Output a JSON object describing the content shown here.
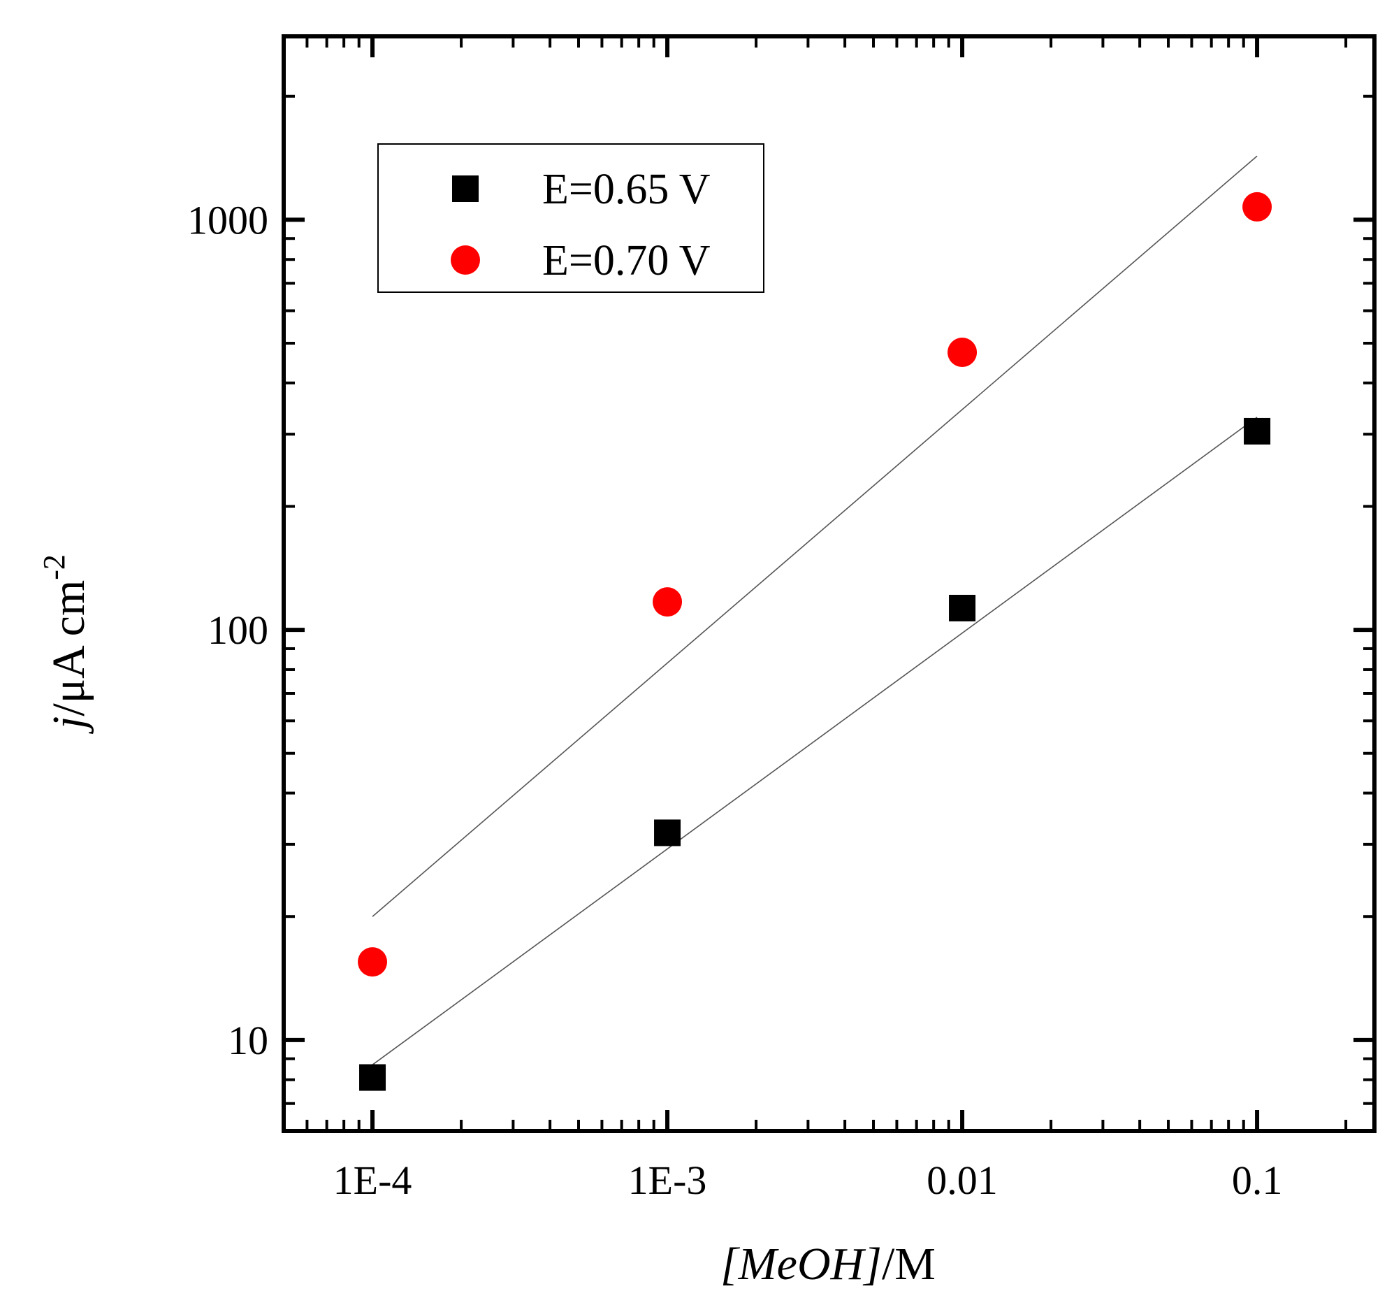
{
  "chart_data": {
    "type": "scatter",
    "xscale": "log",
    "yscale": "log",
    "xlim": [
      5e-05,
      0.25
    ],
    "ylim": [
      6,
      2800
    ],
    "x_ticks": [
      {
        "value": 0.0001,
        "label": "1E-4"
      },
      {
        "value": 0.001,
        "label": "1E-3"
      },
      {
        "value": 0.01,
        "label": "0.01"
      },
      {
        "value": 0.1,
        "label": "0.1"
      }
    ],
    "y_ticks": [
      {
        "value": 10,
        "label": "10"
      },
      {
        "value": 100,
        "label": "100"
      },
      {
        "value": 1000,
        "label": "1000"
      }
    ],
    "xlabel": {
      "italic": "[MeOH]",
      "normal": "/M"
    },
    "ylabel": {
      "italic": "j",
      "normal": "/μA cm",
      "sup": "-2"
    },
    "legend_position": "top-left",
    "series": [
      {
        "name": "E=0.65 V",
        "marker": "square",
        "color": "#000000",
        "x": [
          0.0001,
          0.001,
          0.01,
          0.1
        ],
        "y": [
          8.1,
          32,
          113,
          305
        ],
        "fit": {
          "x": [
            0.0001,
            0.1
          ],
          "y": [
            8.7,
            330
          ]
        }
      },
      {
        "name": "E=0.70 V",
        "marker": "circle",
        "color": "#ff0000",
        "x": [
          0.0001,
          0.001,
          0.01,
          0.1
        ],
        "y": [
          15.5,
          117,
          475,
          1075
        ],
        "fit": {
          "x": [
            0.0001,
            0.1
          ],
          "y": [
            20,
            1430
          ]
        }
      }
    ]
  }
}
